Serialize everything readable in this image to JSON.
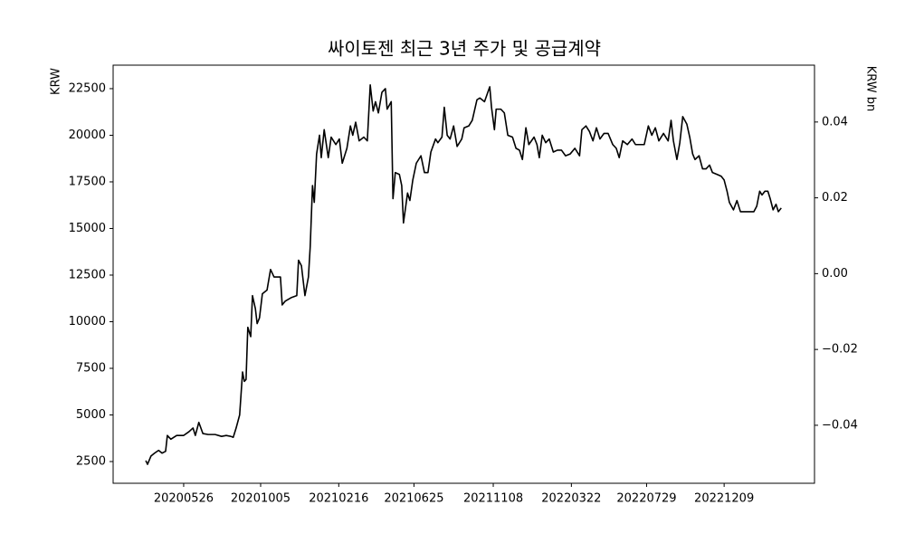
{
  "chart_data": {
    "type": "line",
    "title": "싸이토젠 최근 3년 주가 및 공급계약",
    "ylabel": "KRW",
    "y2label": "KRW bn",
    "color": "#000000",
    "xlim": [
      "20200126",
      "20230513"
    ],
    "xticks": [
      "20200526",
      "20201005",
      "20210216",
      "20210625",
      "20211108",
      "20220322",
      "20220729",
      "20221209"
    ],
    "ylim": [
      1335,
      23760
    ],
    "yticks": [
      2500,
      5000,
      7500,
      10000,
      12500,
      15000,
      17500,
      20000,
      22500
    ],
    "y2lim": [
      -0.0553,
      0.055
    ],
    "y2ticks": [
      {
        "value": -0.04,
        "label": "−0.04"
      },
      {
        "value": -0.02,
        "label": "−0.02"
      },
      {
        "value": 0,
        "label": "0.00"
      },
      0.02,
      0.04
    ],
    "x": [
      "20200322",
      "20200325",
      "20200331",
      "20200406",
      "20200413",
      "20200419",
      "20200425",
      "20200428",
      "20200504",
      "20200514",
      "20200526",
      "20200604",
      "20200611",
      "20200615",
      "20200621",
      "20200628",
      "20200707",
      "20200719",
      "20200730",
      "20200807",
      "20200815",
      "20200819",
      "20200824",
      "20200830",
      "20200904",
      "20200907",
      "20200910",
      "20200913",
      "20200918",
      "20200921",
      "20200926",
      "20200929",
      "20201003",
      "20201008",
      "20201016",
      "20201022",
      "20201028",
      "20201108",
      "20201111",
      "20201116",
      "20201127",
      "20201206",
      "20201209",
      "20201214",
      "20201220",
      "20201226",
      "20201229",
      "20210102",
      "20210105",
      "20210109",
      "20210114",
      "20210117",
      "20210122",
      "20210129",
      "20210203",
      "20210211",
      "20210217",
      "20210222",
      "20210302",
      "20210308",
      "20210312",
      "20210317",
      "20210323",
      "20210331",
      "20210406",
      "20210411",
      "20210416",
      "20210420",
      "20210425",
      "20210501",
      "20210507",
      "20210510",
      "20210517",
      "20210520",
      "20210524",
      "20210531",
      "20210604",
      "20210607",
      "20210614",
      "20210618",
      "20210623",
      "20210629",
      "20210707",
      "20210713",
      "20210719",
      "20210724",
      "20210801",
      "20210805",
      "20210812",
      "20210816",
      "20210821",
      "20210826",
      "20210901",
      "20210907",
      "20210915",
      "20210919",
      "20210927",
      "20211003",
      "20211011",
      "20211016",
      "20211024",
      "20211102",
      "20211105",
      "20211110",
      "20211113",
      "20211121",
      "20211127",
      "20211203",
      "20211211",
      "20211217",
      "20211223",
      "20211228",
      "20220103",
      "20220108",
      "20220117",
      "20220122",
      "20220126",
      "20220131",
      "20220206",
      "20220212",
      "20220219",
      "20220226",
      "20220305",
      "20220312",
      "20220320",
      "20220328",
      "20220405",
      "20220409",
      "20220416",
      "20220422",
      "20220428",
      "20220504",
      "20220510",
      "20220517",
      "20220524",
      "20220601",
      "20220607",
      "20220612",
      "20220618",
      "20220626",
      "20220704",
      "20220710",
      "20220719",
      "20220725",
      "20220801",
      "20220807",
      "20220813",
      "20220819",
      "20220827",
      "20220904",
      "20220909",
      "20220913",
      "20220919",
      "20220924",
      "20220929",
      "20221006",
      "20221011",
      "20221016",
      "20221020",
      "20221027",
      "20221102",
      "20221108",
      "20221114",
      "20221119",
      "20221127",
      "20221204",
      "20221209",
      "20221214",
      "20221218",
      "20221225",
      "20221231",
      "20230106",
      "20230112",
      "20230122",
      "20230129",
      "20230203",
      "20230208",
      "20230212",
      "20230217",
      "20230222",
      "20230226",
      "20230303",
      "20230308",
      "20230312",
      "20230317"
    ],
    "values": [
      2550,
      2350,
      2800,
      2950,
      3100,
      2950,
      3050,
      3900,
      3700,
      3900,
      3900,
      4100,
      4300,
      3900,
      4600,
      4000,
      3950,
      3950,
      3850,
      3900,
      3850,
      3800,
      4300,
      5000,
      7300,
      6800,
      6900,
      9700,
      9200,
      11400,
      10700,
      9900,
      10200,
      11500,
      11700,
      12800,
      12400,
      12400,
      10900,
      11100,
      11300,
      11400,
      13300,
      13000,
      11400,
      12400,
      14000,
      17300,
      16400,
      19000,
      20000,
      18800,
      20300,
      18800,
      19900,
      19500,
      19800,
      18500,
      19300,
      20500,
      20000,
      20700,
      19700,
      19900,
      19700,
      22700,
      21300,
      21800,
      21200,
      22300,
      22500,
      21400,
      21800,
      16600,
      18000,
      17900,
      17300,
      15300,
      16900,
      16500,
      17600,
      18500,
      18900,
      18000,
      18000,
      19100,
      19800,
      19600,
      19900,
      21500,
      20000,
      19800,
      20500,
      19400,
      19800,
      20400,
      20500,
      20800,
      21900,
      22000,
      21800,
      22600,
      21500,
      20300,
      21400,
      21400,
      21200,
      20000,
      19900,
      19300,
      19200,
      18700,
      20400,
      19500,
      19900,
      19500,
      18800,
      20000,
      19600,
      19800,
      19100,
      19200,
      19200,
      18900,
      19000,
      19300,
      18900,
      20300,
      20500,
      20200,
      19700,
      20400,
      19800,
      20100,
      20100,
      19500,
      19300,
      18800,
      19700,
      19500,
      19800,
      19500,
      19500,
      19500,
      20500,
      20000,
      20400,
      19700,
      20100,
      19700,
      20800,
      19700,
      18700,
      19600,
      21000,
      20600,
      19900,
      19000,
      18700,
      18900,
      18200,
      18200,
      18400,
      18000,
      17900,
      17800,
      17600,
      17000,
      16400,
      16000,
      16500,
      15900,
      15900,
      15900,
      15900,
      16200,
      17000,
      16800,
      17000,
      17000,
      16600,
      16000,
      16300,
      15900,
      16100
    ]
  }
}
